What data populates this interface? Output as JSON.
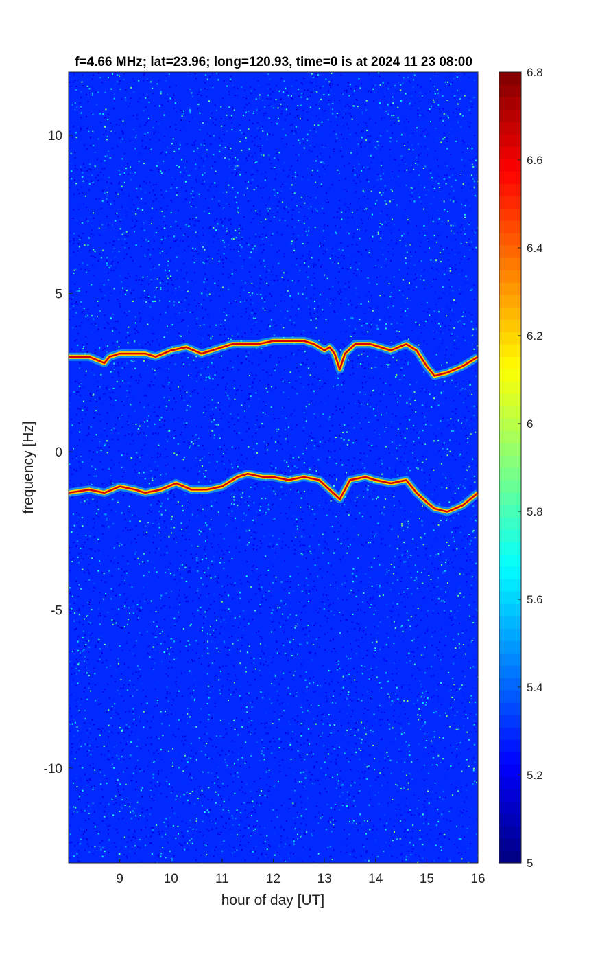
{
  "chart_data": {
    "type": "heatmap",
    "title": "f=4.66 MHz;  lat=23.96; long=120.93, time=0 is at 2024 11 23 08:00",
    "xlabel": "hour of day [UT]",
    "ylabel": "frequency [Hz]",
    "xlim": [
      8,
      16
    ],
    "ylim": [
      -13,
      12
    ],
    "x_ticks": [
      9,
      10,
      11,
      12,
      13,
      14,
      15,
      16
    ],
    "x_tick_labels": [
      "9",
      "10",
      "11",
      "12",
      "13",
      "14",
      "15",
      "16"
    ],
    "y_ticks": [
      10,
      5,
      0,
      -5,
      -10
    ],
    "y_tick_labels": [
      "10",
      "5",
      "0",
      "-5",
      "-10"
    ],
    "colorbar": {
      "colormap": "jet",
      "range": [
        5,
        6.8
      ],
      "ticks": [
        6.8,
        6.6,
        6.4,
        6.2,
        6,
        5.8,
        5.6,
        5.4,
        5.2,
        5
      ],
      "tick_labels": [
        "6.8",
        "6.6",
        "6.4",
        "6.2",
        "6",
        "5.8",
        "5.6",
        "5.4",
        "5.2",
        "5"
      ]
    },
    "background_level": 5.3,
    "series": [
      {
        "x": [
          8.0,
          8.4,
          8.7,
          8.8,
          9.0,
          9.2,
          9.5,
          9.7,
          10.0,
          10.3,
          10.6,
          10.8,
          11.2,
          11.4,
          11.7,
          12.0,
          12.3,
          12.6,
          12.8,
          12.9,
          13.0,
          13.1,
          13.2,
          13.3,
          13.4,
          13.6,
          13.9,
          14.1,
          14.3,
          14.6,
          14.8,
          15.0,
          15.15,
          15.4,
          15.7,
          16.0
        ],
        "y": [
          3.0,
          3.0,
          2.8,
          3.0,
          3.1,
          3.1,
          3.1,
          3.0,
          3.2,
          3.3,
          3.1,
          3.2,
          3.4,
          3.4,
          3.4,
          3.5,
          3.5,
          3.5,
          3.4,
          3.3,
          3.2,
          3.3,
          3.1,
          2.6,
          3.1,
          3.4,
          3.4,
          3.3,
          3.2,
          3.4,
          3.2,
          2.7,
          2.4,
          2.5,
          2.7,
          3.0
        ]
      },
      {
        "x": [
          8.0,
          8.4,
          8.7,
          9.0,
          9.3,
          9.5,
          9.8,
          10.1,
          10.4,
          10.7,
          11.0,
          11.3,
          11.5,
          11.8,
          12.0,
          12.3,
          12.6,
          12.9,
          13.1,
          13.3,
          13.5,
          13.8,
          14.0,
          14.3,
          14.6,
          14.8,
          15.0,
          15.15,
          15.4,
          15.7,
          16.0
        ],
        "y": [
          -1.3,
          -1.2,
          -1.3,
          -1.1,
          -1.2,
          -1.3,
          -1.2,
          -1.0,
          -1.2,
          -1.2,
          -1.1,
          -0.8,
          -0.7,
          -0.8,
          -0.8,
          -0.9,
          -0.8,
          -0.9,
          -1.2,
          -1.5,
          -0.9,
          -0.8,
          -0.9,
          -1.0,
          -0.9,
          -1.3,
          -1.6,
          -1.8,
          -1.9,
          -1.7,
          -1.3
        ]
      }
    ]
  }
}
